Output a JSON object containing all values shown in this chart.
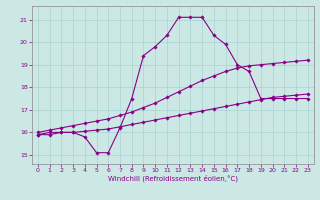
{
  "xlabel": "Windchill (Refroidissement éolien,°C)",
  "bg_color": "#cce8e4",
  "line_color": "#880088",
  "xlim": [
    -0.5,
    23.5
  ],
  "ylim": [
    14.6,
    21.6
  ],
  "yticks": [
    15,
    16,
    17,
    18,
    19,
    20,
    21
  ],
  "xticks": [
    0,
    1,
    2,
    3,
    4,
    5,
    6,
    7,
    8,
    9,
    10,
    11,
    12,
    13,
    14,
    15,
    16,
    17,
    18,
    19,
    20,
    21,
    22,
    23
  ],
  "curve1_x": [
    0,
    1,
    2,
    3,
    4,
    5,
    6,
    7,
    8,
    9,
    10,
    11,
    12,
    13,
    14,
    15,
    16,
    17,
    18,
    19,
    20,
    21,
    22,
    23
  ],
  "curve1_y": [
    15.9,
    16.0,
    16.0,
    16.0,
    15.8,
    15.1,
    15.1,
    16.2,
    17.5,
    19.4,
    19.8,
    20.3,
    21.1,
    21.1,
    21.1,
    20.3,
    19.9,
    19.0,
    18.7,
    17.5,
    17.5,
    17.5,
    17.5,
    17.5
  ],
  "curve2_x": [
    0,
    1,
    2,
    3,
    4,
    5,
    6,
    7,
    8,
    9,
    10,
    11,
    12,
    13,
    14,
    15,
    16,
    17,
    18,
    19,
    20,
    21,
    22,
    23
  ],
  "curve2_y": [
    15.9,
    15.9,
    16.0,
    16.0,
    16.05,
    16.1,
    16.15,
    16.25,
    16.35,
    16.45,
    16.55,
    16.65,
    16.75,
    16.85,
    16.95,
    17.05,
    17.15,
    17.25,
    17.35,
    17.45,
    17.55,
    17.6,
    17.65,
    17.7
  ],
  "curve3_x": [
    0,
    1,
    2,
    3,
    4,
    5,
    6,
    7,
    8,
    9,
    10,
    11,
    12,
    13,
    14,
    15,
    16,
    17,
    18,
    19,
    20,
    21,
    22,
    23
  ],
  "curve3_y": [
    16.0,
    16.1,
    16.2,
    16.3,
    16.4,
    16.5,
    16.6,
    16.75,
    16.9,
    17.1,
    17.3,
    17.55,
    17.8,
    18.05,
    18.3,
    18.5,
    18.7,
    18.85,
    18.95,
    19.0,
    19.05,
    19.1,
    19.15,
    19.2
  ]
}
